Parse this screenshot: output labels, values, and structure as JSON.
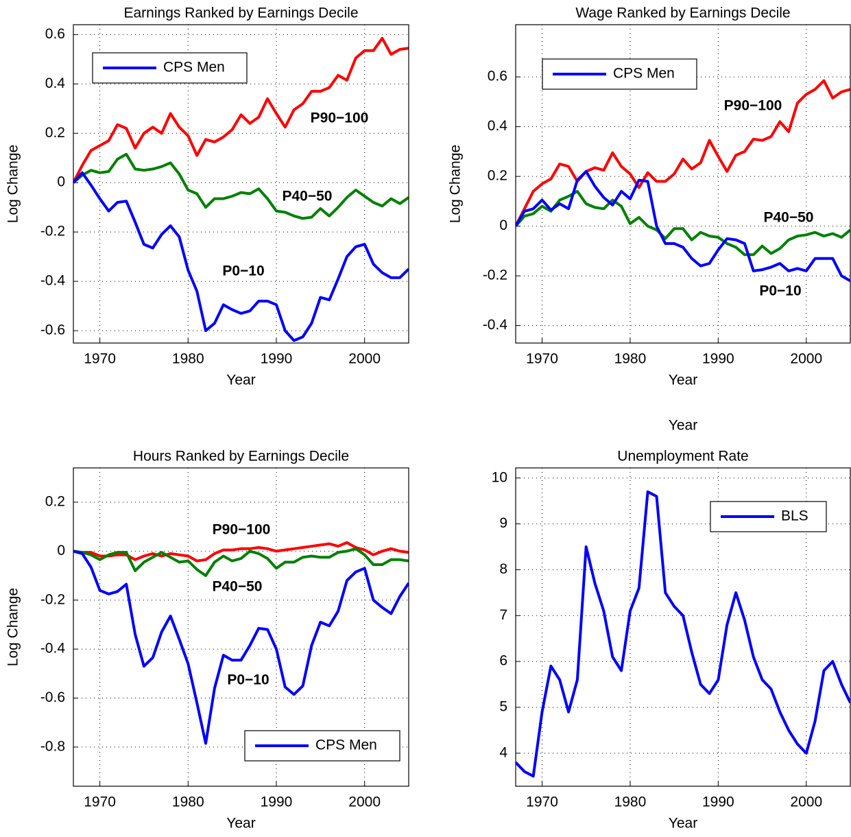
{
  "chart_data": [
    {
      "type": "line",
      "title": "Earnings Ranked by Earnings Decile",
      "x_label": "Year",
      "y_label": "Log Change",
      "x": [
        1967,
        1968,
        1969,
        1970,
        1971,
        1972,
        1973,
        1974,
        1975,
        1976,
        1977,
        1978,
        1979,
        1980,
        1981,
        1982,
        1983,
        1984,
        1985,
        1986,
        1987,
        1988,
        1989,
        1990,
        1991,
        1992,
        1993,
        1994,
        1995,
        1996,
        1997,
        1998,
        1999,
        2000,
        2001,
        2002,
        2003,
        2004,
        2005
      ],
      "series": [
        {
          "color": "#ff0000",
          "values": [
            0,
            0.07,
            0.13,
            0.15,
            0.17,
            0.235,
            0.22,
            0.14,
            0.2,
            0.225,
            0.2,
            0.28,
            0.225,
            0.19,
            0.11,
            0.175,
            0.165,
            0.185,
            0.215,
            0.275,
            0.24,
            0.265,
            0.34,
            0.28,
            0.225,
            0.295,
            0.32,
            0.37,
            0.37,
            0.385,
            0.435,
            0.415,
            0.505,
            0.535,
            0.535,
            0.585,
            0.52,
            0.54,
            0.545
          ]
        },
        {
          "color": "#008000",
          "values": [
            0,
            0.03,
            0.05,
            0.04,
            0.045,
            0.095,
            0.115,
            0.055,
            0.05,
            0.055,
            0.065,
            0.08,
            0.035,
            -0.03,
            -0.045,
            -0.1,
            -0.065,
            -0.065,
            -0.055,
            -0.04,
            -0.045,
            -0.025,
            -0.065,
            -0.115,
            -0.12,
            -0.135,
            -0.145,
            -0.14,
            -0.105,
            -0.135,
            -0.1,
            -0.06,
            -0.03,
            -0.055,
            -0.08,
            -0.095,
            -0.065,
            -0.085,
            -0.06
          ]
        },
        {
          "name": "CPS Men",
          "color": "#0000ff",
          "values": [
            0,
            0.04,
            -0.01,
            -0.065,
            -0.115,
            -0.08,
            -0.075,
            -0.16,
            -0.25,
            -0.265,
            -0.21,
            -0.175,
            -0.22,
            -0.355,
            -0.44,
            -0.6,
            -0.57,
            -0.495,
            -0.515,
            -0.53,
            -0.52,
            -0.48,
            -0.48,
            -0.495,
            -0.6,
            -0.64,
            -0.625,
            -0.57,
            -0.465,
            -0.475,
            -0.39,
            -0.3,
            -0.26,
            -0.25,
            -0.33,
            -0.365,
            -0.385,
            -0.385,
            -0.35
          ]
        }
      ],
      "annotations": [
        "P90−100",
        "P40−50",
        "P0−10"
      ],
      "xlim": [
        1967,
        2005
      ],
      "xticks": [
        1970,
        1980,
        1990,
        2000
      ],
      "ylim": [
        -0.65,
        0.64
      ],
      "yticks": [
        -0.6,
        -0.4,
        -0.2,
        0,
        0.2,
        0.4,
        0.6
      ],
      "grid": true,
      "legend": "upper-left"
    },
    {
      "type": "line",
      "title": "Wage Ranked by Earnings Decile",
      "x_label": "Year",
      "y_label": "Log Change",
      "x": [
        1967,
        1968,
        1969,
        1970,
        1971,
        1972,
        1973,
        1974,
        1975,
        1976,
        1977,
        1978,
        1979,
        1980,
        1981,
        1982,
        1983,
        1984,
        1985,
        1986,
        1987,
        1988,
        1989,
        1990,
        1991,
        1992,
        1993,
        1994,
        1995,
        1996,
        1997,
        1998,
        1999,
        2000,
        2001,
        2002,
        2003,
        2004,
        2005
      ],
      "series": [
        {
          "color": "#ff0000",
          "values": [
            0,
            0.07,
            0.14,
            0.17,
            0.19,
            0.25,
            0.24,
            0.18,
            0.22,
            0.235,
            0.225,
            0.295,
            0.24,
            0.21,
            0.155,
            0.215,
            0.18,
            0.18,
            0.21,
            0.27,
            0.23,
            0.255,
            0.345,
            0.28,
            0.22,
            0.285,
            0.3,
            0.35,
            0.345,
            0.36,
            0.42,
            0.38,
            0.495,
            0.53,
            0.55,
            0.585,
            0.515,
            0.54,
            0.55
          ]
        },
        {
          "color": "#008000",
          "values": [
            0,
            0.04,
            0.05,
            0.08,
            0.06,
            0.105,
            0.12,
            0.14,
            0.09,
            0.075,
            0.07,
            0.105,
            0.08,
            0.01,
            0.035,
            0,
            -0.015,
            -0.05,
            -0.01,
            -0.01,
            -0.055,
            -0.025,
            -0.04,
            -0.045,
            -0.07,
            -0.085,
            -0.115,
            -0.115,
            -0.08,
            -0.11,
            -0.09,
            -0.055,
            -0.04,
            -0.035,
            -0.025,
            -0.04,
            -0.03,
            -0.045,
            -0.015
          ]
        },
        {
          "name": "CPS Men",
          "color": "#0000ff",
          "values": [
            0,
            0.06,
            0.07,
            0.105,
            0.065,
            0.09,
            0.07,
            0.185,
            0.22,
            0.16,
            0.115,
            0.085,
            0.14,
            0.11,
            0.185,
            0.18,
            0,
            -0.07,
            -0.07,
            -0.085,
            -0.13,
            -0.16,
            -0.15,
            -0.095,
            -0.05,
            -0.055,
            -0.07,
            -0.18,
            -0.175,
            -0.165,
            -0.15,
            -0.18,
            -0.17,
            -0.18,
            -0.13,
            -0.13,
            -0.13,
            -0.2,
            -0.22
          ]
        }
      ],
      "annotations": [
        "P90−100",
        "P40−50",
        "P0−10"
      ],
      "xlim": [
        1967,
        2005
      ],
      "xticks": [
        1970,
        1980,
        1990,
        2000
      ],
      "ylim": [
        -0.47,
        0.81
      ],
      "yticks": [
        -0.4,
        -0.2,
        0,
        0.2,
        0.4,
        0.6
      ],
      "grid": true,
      "legend": "upper-left"
    },
    {
      "type": "line",
      "title": "Hours Ranked by Earnings Decile",
      "x_label": "Year",
      "y_label": "Log Change",
      "x": [
        1967,
        1968,
        1969,
        1970,
        1971,
        1972,
        1973,
        1974,
        1975,
        1976,
        1977,
        1978,
        1979,
        1980,
        1981,
        1982,
        1983,
        1984,
        1985,
        1986,
        1987,
        1988,
        1989,
        1990,
        1991,
        1992,
        1993,
        1994,
        1995,
        1996,
        1997,
        1998,
        1999,
        2000,
        2001,
        2002,
        2003,
        2004,
        2005
      ],
      "series": [
        {
          "color": "#ff0000",
          "values": [
            0,
            -0.005,
            -0.005,
            -0.02,
            -0.02,
            -0.015,
            -0.015,
            -0.035,
            -0.02,
            -0.01,
            -0.02,
            -0.01,
            -0.015,
            -0.02,
            -0.04,
            -0.035,
            -0.01,
            0.005,
            0.005,
            0.01,
            0.01,
            0.015,
            0.01,
            0,
            0.005,
            0.01,
            0.015,
            0.02,
            0.025,
            0.03,
            0.02,
            0.035,
            0.015,
            0.005,
            -0.015,
            0,
            0.01,
            0,
            -0.005
          ]
        },
        {
          "color": "#008000",
          "values": [
            0,
            -0.005,
            -0.015,
            -0.035,
            -0.015,
            -0.005,
            -0.005,
            -0.08,
            -0.045,
            -0.025,
            -0.005,
            -0.025,
            -0.045,
            -0.04,
            -0.075,
            -0.1,
            -0.045,
            -0.02,
            -0.04,
            -0.03,
            0,
            -0.01,
            -0.03,
            -0.07,
            -0.045,
            -0.045,
            -0.025,
            -0.02,
            -0.025,
            -0.025,
            -0.005,
            0,
            0.01,
            -0.015,
            -0.055,
            -0.055,
            -0.035,
            -0.035,
            -0.04
          ]
        },
        {
          "name": "CPS Men",
          "color": "#0000ff",
          "values": [
            0,
            -0.01,
            -0.065,
            -0.16,
            -0.175,
            -0.165,
            -0.135,
            -0.34,
            -0.47,
            -0.435,
            -0.33,
            -0.265,
            -0.36,
            -0.46,
            -0.62,
            -0.785,
            -0.56,
            -0.425,
            -0.445,
            -0.445,
            -0.385,
            -0.315,
            -0.32,
            -0.4,
            -0.555,
            -0.585,
            -0.55,
            -0.385,
            -0.29,
            -0.305,
            -0.245,
            -0.12,
            -0.085,
            -0.07,
            -0.2,
            -0.23,
            -0.255,
            -0.185,
            -0.13
          ]
        }
      ],
      "annotations": [
        "P90−100",
        "P40−50",
        "P0−10"
      ],
      "xlim": [
        1967,
        2005
      ],
      "xticks": [
        1970,
        1980,
        1990,
        2000
      ],
      "ylim": [
        -0.96,
        0.34
      ],
      "yticks": [
        -0.8,
        -0.6,
        -0.4,
        -0.2,
        0,
        0.2
      ],
      "grid": true,
      "legend": "lower-right"
    },
    {
      "type": "line",
      "title": "Unemployment Rate",
      "x_label": "Year",
      "top_label": "Year",
      "x": [
        1967,
        1968,
        1969,
        1970,
        1971,
        1972,
        1973,
        1974,
        1975,
        1976,
        1977,
        1978,
        1979,
        1980,
        1981,
        1982,
        1983,
        1984,
        1985,
        1986,
        1987,
        1988,
        1989,
        1990,
        1991,
        1992,
        1993,
        1994,
        1995,
        1996,
        1997,
        1998,
        1999,
        2000,
        2001,
        2002,
        2003,
        2004,
        2005
      ],
      "series": [
        {
          "name": "BLS",
          "color": "#0000ff",
          "values": [
            3.8,
            3.6,
            3.5,
            4.9,
            5.9,
            5.6,
            4.9,
            5.6,
            8.5,
            7.7,
            7.1,
            6.1,
            5.8,
            7.1,
            7.6,
            9.7,
            9.6,
            7.5,
            7.2,
            7.0,
            6.2,
            5.5,
            5.3,
            5.6,
            6.8,
            7.5,
            6.9,
            6.1,
            5.6,
            5.4,
            4.9,
            4.5,
            4.2,
            4.0,
            4.7,
            5.8,
            6.0,
            5.5,
            5.1
          ]
        }
      ],
      "xlim": [
        1967,
        2005
      ],
      "xticks": [
        1970,
        1980,
        1990,
        2000
      ],
      "ylim": [
        3.28,
        10.22
      ],
      "yticks": [
        4,
        5,
        6,
        7,
        8,
        9,
        10
      ],
      "grid": true,
      "legend": "upper-right"
    }
  ]
}
